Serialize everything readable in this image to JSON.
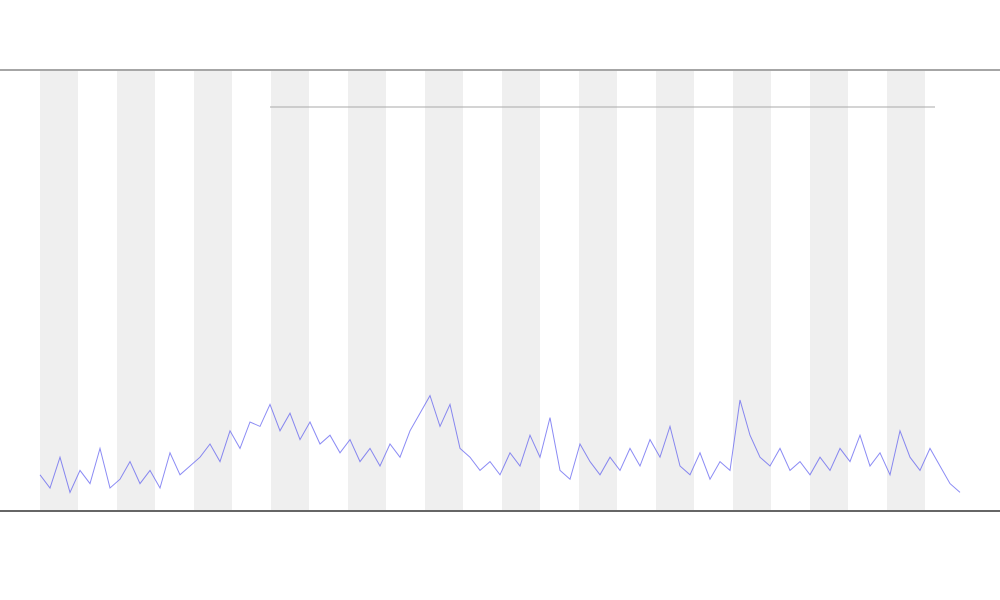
{
  "chart_data": {
    "type": "line",
    "series": [
      {
        "color": "#5a5af0",
        "values": [
          8,
          5,
          12,
          4,
          9,
          6,
          14,
          5,
          7,
          11,
          6,
          9,
          5,
          13,
          8,
          10,
          12,
          15,
          11,
          18,
          14,
          20,
          19,
          24,
          18,
          22,
          16,
          20,
          15,
          17,
          13,
          16,
          11,
          14,
          10,
          15,
          12,
          18,
          22,
          26,
          19,
          24,
          14,
          12,
          9,
          11,
          8,
          13,
          10,
          17,
          12,
          21,
          9,
          7,
          15,
          11,
          8,
          12,
          9,
          14,
          10,
          16,
          12,
          19,
          10,
          8,
          13,
          7,
          11,
          9,
          25,
          17,
          12,
          10,
          14,
          9,
          11,
          8,
          12,
          9,
          14,
          11,
          17,
          10,
          13,
          8,
          18,
          12,
          9,
          14,
          10,
          6,
          4
        ]
      }
    ],
    "ylim": [
      0,
      100
    ]
  }
}
